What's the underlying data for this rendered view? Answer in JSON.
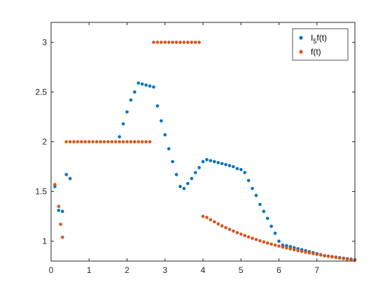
{
  "chart_data": {
    "type": "scatter",
    "title": "",
    "xlabel": "",
    "ylabel": "",
    "xlim": [
      0,
      8
    ],
    "ylim": [
      0.8,
      3.2
    ],
    "xticks": [
      0,
      1,
      2,
      3,
      4,
      5,
      6,
      7
    ],
    "yticks": [
      1,
      1.5,
      2,
      2.5,
      3
    ],
    "xtick_labels": [
      "0",
      "1",
      "2",
      "3",
      "4",
      "5",
      "6",
      "7"
    ],
    "ytick_labels": [
      "1",
      "1.5",
      "2",
      "2.5",
      "3"
    ],
    "grid": false,
    "legend_position": "top-right",
    "legend_entries": [
      {
        "base": "I",
        "sub": "5",
        "rest": "f(t)",
        "color": "#0072BD"
      },
      {
        "base": "f(t)",
        "sub": "",
        "rest": "",
        "color": "#D95319"
      }
    ],
    "series": [
      {
        "color": "#0072BD",
        "x": [
          0.1,
          0.2,
          0.3,
          0.4,
          0.5,
          1.8,
          1.9,
          2.0,
          2.1,
          2.2,
          2.3,
          2.4,
          2.5,
          2.6,
          2.7,
          2.8,
          2.9,
          3.0,
          3.1,
          3.2,
          3.3,
          3.4,
          3.5,
          3.6,
          3.7,
          3.8,
          3.9,
          4.0,
          4.1,
          4.2,
          4.3,
          4.4,
          4.5,
          4.6,
          4.7,
          4.8,
          4.9,
          5.0,
          5.1,
          5.2,
          5.3,
          5.4,
          5.5,
          5.6,
          5.7,
          5.8,
          5.9,
          6.0,
          6.1,
          6.2,
          6.3,
          6.4,
          6.5,
          6.6,
          6.7,
          6.8,
          6.9,
          7.0,
          7.1,
          7.2,
          7.3,
          7.4,
          7.5,
          7.6,
          7.7,
          7.8,
          7.9,
          8.0
        ],
        "y": [
          1.55,
          1.31,
          1.3,
          1.67,
          1.63,
          2.05,
          2.18,
          2.3,
          2.42,
          2.5,
          2.59,
          2.58,
          2.57,
          2.56,
          2.55,
          2.36,
          2.21,
          2.07,
          1.93,
          1.8,
          1.67,
          1.55,
          1.53,
          1.58,
          1.63,
          1.69,
          1.74,
          1.8,
          1.82,
          1.81,
          1.8,
          1.79,
          1.78,
          1.77,
          1.76,
          1.75,
          1.73,
          1.72,
          1.69,
          1.61,
          1.53,
          1.46,
          1.37,
          1.3,
          1.23,
          1.15,
          1.08,
          1.0,
          0.96,
          0.955,
          0.945,
          0.935,
          0.925,
          0.915,
          0.905,
          0.895,
          0.885,
          0.875,
          0.865,
          0.855,
          0.85,
          0.845,
          0.84,
          0.835,
          0.83,
          0.825,
          0.82,
          0.815
        ]
      },
      {
        "color": "#D95319",
        "x": [
          0.1,
          0.2,
          0.25,
          0.3,
          0.4,
          0.5,
          0.6,
          0.7,
          0.8,
          0.9,
          1.0,
          1.1,
          1.2,
          1.3,
          1.4,
          1.5,
          1.6,
          1.7,
          1.8,
          1.9,
          2.0,
          2.1,
          2.2,
          2.3,
          2.4,
          2.5,
          2.6,
          2.7,
          2.8,
          2.9,
          3.0,
          3.1,
          3.2,
          3.3,
          3.4,
          3.5,
          3.6,
          3.7,
          3.8,
          3.9,
          4.0,
          4.1,
          4.2,
          4.3,
          4.4,
          4.5,
          4.6,
          4.7,
          4.8,
          4.9,
          5.0,
          5.1,
          5.2,
          5.3,
          5.4,
          5.5,
          5.6,
          5.7,
          5.8,
          5.9,
          6.0,
          6.1,
          6.2,
          6.3,
          6.4,
          6.5,
          6.6,
          6.7,
          6.8,
          6.9,
          7.0,
          7.1,
          7.2,
          7.3,
          7.4,
          7.5,
          7.6,
          7.7,
          7.8,
          7.9,
          8.0
        ],
        "y": [
          1.57,
          1.35,
          1.17,
          1.04,
          2.0,
          2.0,
          2.0,
          2.0,
          2.0,
          2.0,
          2.0,
          2.0,
          2.0,
          2.0,
          2.0,
          2.0,
          2.0,
          2.0,
          2.0,
          2.0,
          2.0,
          2.0,
          2.0,
          2.0,
          2.0,
          2.0,
          2.0,
          3.0,
          3.0,
          3.0,
          3.0,
          3.0,
          3.0,
          3.0,
          3.0,
          3.0,
          3.0,
          3.0,
          3.0,
          3.0,
          1.25,
          1.239,
          1.216,
          1.195,
          1.174,
          1.154,
          1.136,
          1.119,
          1.102,
          1.086,
          1.071,
          1.057,
          1.043,
          1.03,
          1.017,
          1.005,
          0.993,
          0.982,
          0.971,
          0.961,
          0.951,
          0.941,
          0.932,
          0.923,
          0.914,
          0.906,
          0.898,
          0.89,
          0.882,
          0.875,
          0.868,
          0.861,
          0.854,
          0.848,
          0.842,
          0.836,
          0.83,
          0.825,
          0.819,
          0.814,
          0.808
        ]
      }
    ]
  }
}
